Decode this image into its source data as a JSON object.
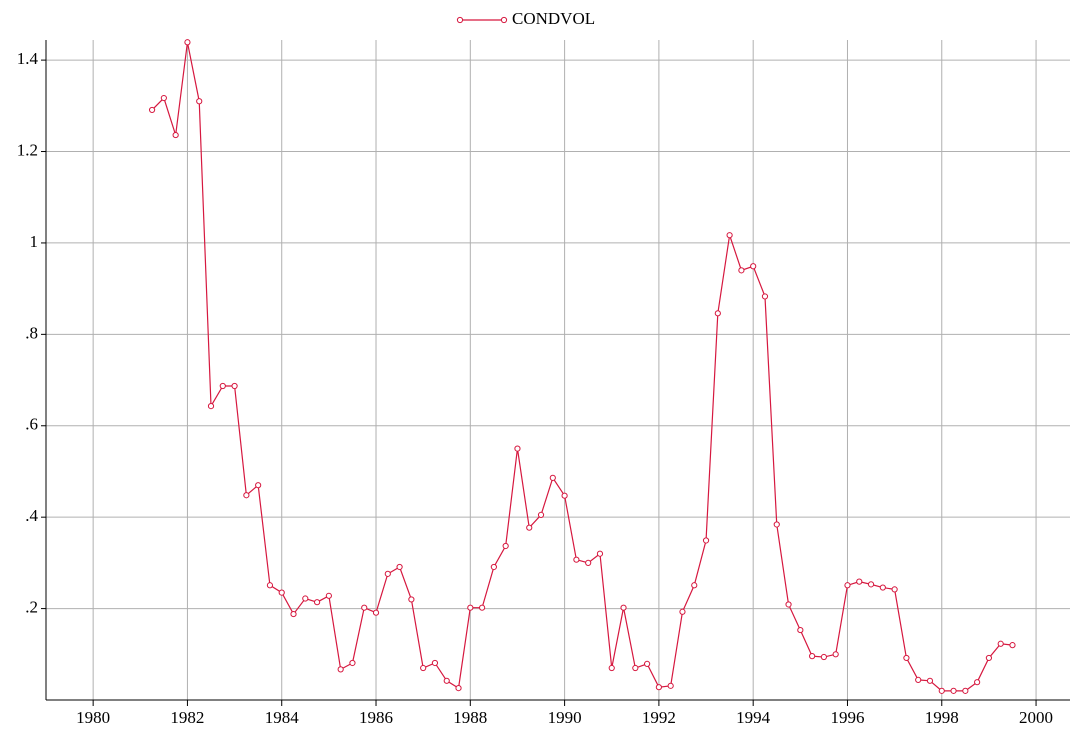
{
  "chart_data": {
    "type": "line",
    "x": [
      1981.25,
      1981.5,
      1981.75,
      1982,
      1982.25,
      1982.5,
      1982.75,
      1983,
      1983.25,
      1983.5,
      1983.75,
      1984,
      1984.25,
      1984.5,
      1984.75,
      1985,
      1985.25,
      1985.5,
      1985.75,
      1986,
      1986.25,
      1986.5,
      1986.75,
      1987,
      1987.25,
      1987.5,
      1987.75,
      1988,
      1988.25,
      1988.5,
      1988.75,
      1989,
      1989.25,
      1989.5,
      1989.75,
      1990,
      1990.25,
      1990.5,
      1990.75,
      1991,
      1991.25,
      1991.5,
      1991.75,
      1992,
      1992.25,
      1992.5,
      1992.75,
      1993,
      1993.25,
      1993.5,
      1993.75,
      1994,
      1994.25,
      1994.5,
      1994.75,
      1995,
      1995.25,
      1995.5,
      1995.75,
      1996,
      1996.25,
      1996.5,
      1996.75,
      1997,
      1997.25,
      1997.5,
      1997.75,
      1998,
      1998.25,
      1998.5,
      1998.75,
      1999,
      1999.25,
      1999.5
    ],
    "series": [
      {
        "name": "CONDVOL",
        "color": "#d6183f",
        "values": [
          1.291,
          1.317,
          1.236,
          1.439,
          1.31,
          0.643,
          0.687,
          0.687,
          0.448,
          0.47,
          0.251,
          0.235,
          0.188,
          0.222,
          0.214,
          0.228,
          0.067,
          0.081,
          0.202,
          0.191,
          0.276,
          0.291,
          0.22,
          0.07,
          0.081,
          0.042,
          0.026,
          0.202,
          0.202,
          0.291,
          0.337,
          0.55,
          0.377,
          0.405,
          0.486,
          0.447,
          0.307,
          0.3,
          0.32,
          0.07,
          0.202,
          0.07,
          0.079,
          0.028,
          0.031,
          0.193,
          0.251,
          0.349,
          0.846,
          1.017,
          0.94,
          0.949,
          0.883,
          0.384,
          0.209,
          0.153,
          0.096,
          0.094,
          0.1,
          0.251,
          0.259,
          0.253,
          0.246,
          0.242,
          0.092,
          0.044,
          0.042,
          0.02,
          0.02,
          0.02,
          0.039,
          0.092,
          0.123,
          0.12
        ]
      }
    ],
    "xlim": [
      1979,
      2000.72
    ],
    "xticks": [
      1980,
      1982,
      1984,
      1986,
      1988,
      1990,
      1992,
      1994,
      1996,
      1998,
      2000
    ],
    "ylim": [
      0,
      1.444
    ],
    "yticks": [
      {
        "value": 0.2,
        "label": ".2"
      },
      {
        "value": 0.4,
        "label": ".4"
      },
      {
        "value": 0.6,
        "label": ".6"
      },
      {
        "value": 0.8,
        "label": ".8"
      },
      1,
      1.2,
      1.4
    ],
    "grid": true,
    "legend": "top"
  }
}
